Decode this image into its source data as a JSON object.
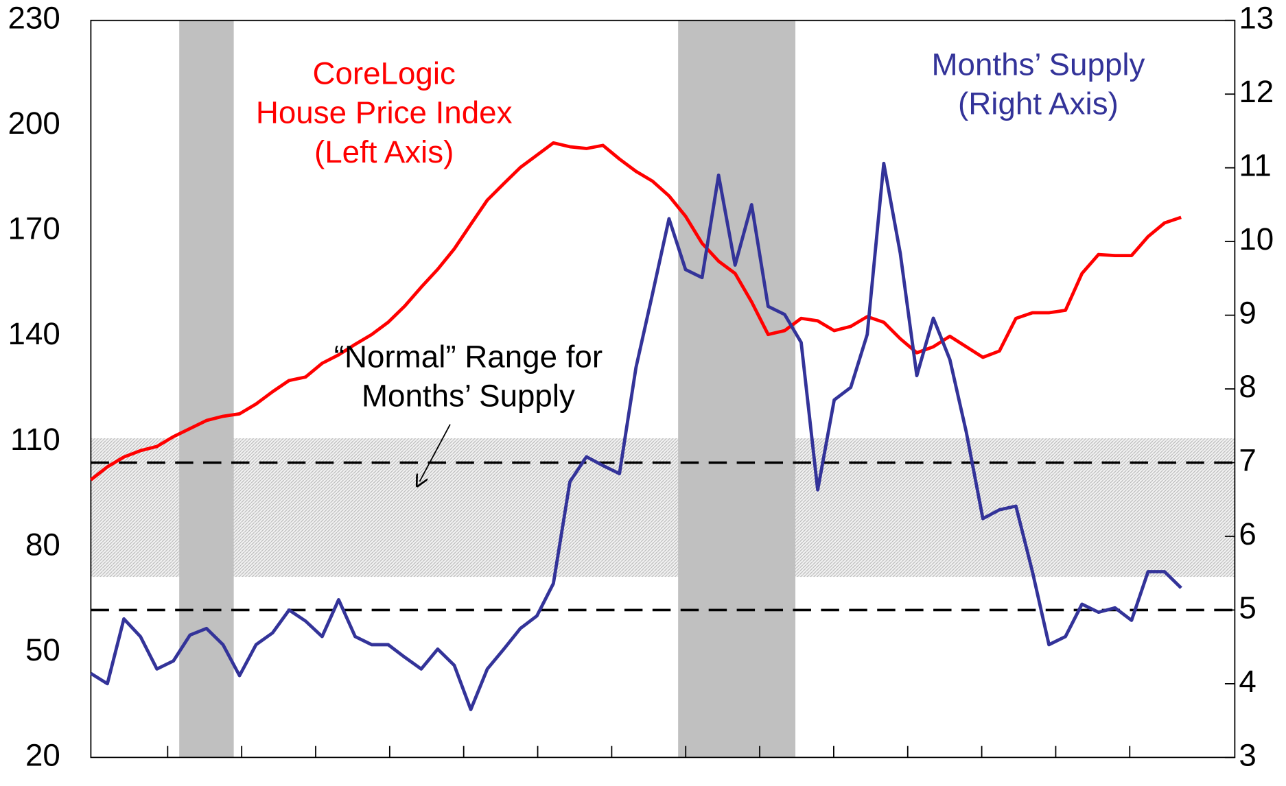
{
  "chart_data": {
    "type": "line",
    "series": [
      {
        "label": [
          "CoreLogic",
          "House Price Index",
          "(Left Axis)"
        ],
        "color": "#ff0000",
        "axis": "y",
        "values": [
          99.1,
          102.8,
          105.6,
          107.4,
          108.6,
          111.4,
          113.7,
          116,
          117.2,
          117.9,
          120.7,
          124.2,
          127.4,
          128.4,
          132.3,
          134.7,
          137.7,
          140.5,
          144,
          148.6,
          154,
          159.1,
          164.9,
          171.9,
          178.8,
          183.5,
          188.1,
          191.6,
          195.1,
          194,
          193.5,
          194.4,
          190.5,
          187,
          184.2,
          180,
          174.2,
          166.5,
          161.4,
          157.9,
          149.8,
          140.5,
          141.6,
          145.1,
          144.4,
          141.6,
          142.8,
          145.6,
          144,
          139.3,
          135.3,
          137,
          140,
          137,
          134,
          135.8,
          145.1,
          146.7,
          146.7,
          147.4,
          157.9,
          163.3,
          163,
          163,
          168.4,
          172.3,
          173.9
        ]
      },
      {
        "label": [
          "Months’ Supply",
          "(Right Axis)"
        ],
        "color": "#333399",
        "axis": "y2",
        "values": [
          4.14,
          4.0,
          4.88,
          4.64,
          4.2,
          4.31,
          4.66,
          4.75,
          4.53,
          4.11,
          4.53,
          4.69,
          5.0,
          4.85,
          4.64,
          5.14,
          4.64,
          4.53,
          4.53,
          4.36,
          4.2,
          4.47,
          4.25,
          3.65,
          4.2,
          4.47,
          4.75,
          4.92,
          5.36,
          6.74,
          7.08,
          6.96,
          6.85,
          8.29,
          9.29,
          10.31,
          9.62,
          9.51,
          10.9,
          9.68,
          10.5,
          9.12,
          9.01,
          8.63,
          6.63,
          7.85,
          8.02,
          8.74,
          11.06,
          9.84,
          8.18,
          8.96,
          8.4,
          7.41,
          6.24,
          6.36,
          6.41,
          5.52,
          4.53,
          4.64,
          5.08,
          4.97,
          5.03,
          4.86,
          5.52,
          5.52,
          5.3
        ]
      }
    ],
    "ylim": [
      20,
      230
    ],
    "yticks": [
      20,
      50,
      80,
      110,
      140,
      170,
      200,
      230
    ],
    "y2lim": [
      3,
      13
    ],
    "y2ticks": [
      3,
      4,
      5,
      6,
      7,
      8,
      9,
      10,
      11,
      12,
      13
    ],
    "recessions": [
      [
        5.35,
        8.65
      ],
      [
        35.55,
        42.65
      ]
    ],
    "normal_range": {
      "label": [
        "“Normal” Range for",
        "Months’ Supply"
      ],
      "band": [
        5.45,
        7.33
      ],
      "lines": [
        7,
        5
      ]
    }
  }
}
